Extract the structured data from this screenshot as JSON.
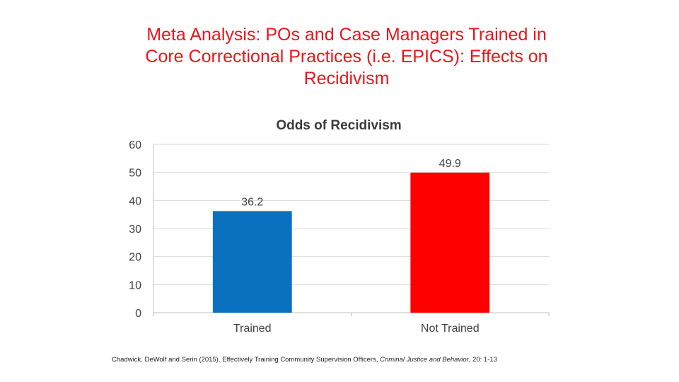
{
  "slide": {
    "title_lines": [
      "Meta Analysis: POs and Case Managers Trained in",
      "Core Correctional Practices (i.e. EPICS): Effects on",
      "Recidivism"
    ]
  },
  "colors": {
    "title": "#e8161c",
    "trained_bar": "#0a70c0",
    "not_trained_bar": "#ff0000",
    "gridline": "#d9d9d9"
  },
  "chart_data": {
    "type": "bar",
    "title": "Odds of Recidivism",
    "categories": [
      "Trained",
      "Not Trained"
    ],
    "values": [
      36.2,
      49.9
    ],
    "data_labels": [
      "36.2",
      "49.9"
    ],
    "bar_colors": [
      "#0a70c0",
      "#ff0000"
    ],
    "ylim": [
      0,
      60
    ],
    "yticks": [
      0,
      10,
      20,
      30,
      40,
      50,
      60
    ],
    "grid": true,
    "legend": "none",
    "xlabel": "",
    "ylabel": ""
  },
  "citation": {
    "authors": "Chadwick, DeWolf and Serin (2015). Effectively Training Community Supervision Officers,",
    "journal": "Criminal Justice and Behavior",
    "pages": "20: 1-13"
  }
}
